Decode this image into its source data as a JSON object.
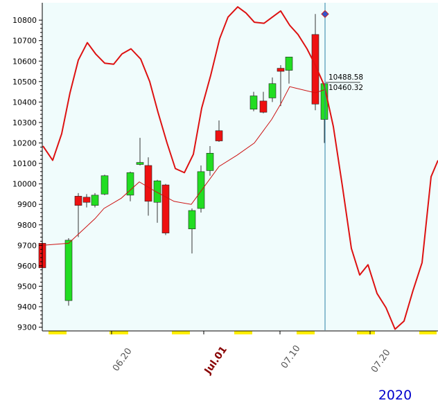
{
  "chart_data": {
    "type": "candlestick",
    "year_label": "2020",
    "x_tick_labels": [
      "06.20",
      "Jul.01",
      "07.10",
      "07.20"
    ],
    "y_ticks": [
      9300,
      9400,
      9500,
      9600,
      9700,
      9800,
      9900,
      10000,
      10100,
      10200,
      10300,
      10400,
      10500,
      10600,
      10700,
      10800
    ],
    "ylim": [
      9285,
      10885
    ],
    "value_labels": [
      "10488.58",
      "10460.32"
    ],
    "grid": false,
    "colors": {
      "plot_background": "#f0fcfc",
      "up_candle": "#22dd22",
      "down_candle": "#ee1111",
      "red_line": "#dd1111",
      "moving_average": "#cc1111",
      "cursor": "#2a7fa6",
      "holiday_marks": "#ffee00",
      "year_label": "#0000cc",
      "highlight_tick": "#880000"
    },
    "candles": [
      {
        "o": 9710,
        "h": 9760,
        "l": 9400,
        "c": 9590
      },
      {
        "o": 9430,
        "h": 9735,
        "l": 9405,
        "c": 9725
      },
      {
        "o": 9940,
        "h": 9955,
        "l": 9740,
        "c": 9895
      },
      {
        "o": 9935,
        "h": 9950,
        "l": 9885,
        "c": 9910
      },
      {
        "o": 9895,
        "h": 9955,
        "l": 9885,
        "c": 9945
      },
      {
        "o": 9950,
        "h": 10045,
        "l": 9945,
        "c": 10040
      },
      {
        "o": 9945,
        "h": 10060,
        "l": 9915,
        "c": 10055
      },
      {
        "o": 10095,
        "h": 10225,
        "l": 10090,
        "c": 10105
      },
      {
        "o": 10090,
        "h": 10130,
        "l": 9845,
        "c": 9915
      },
      {
        "o": 9910,
        "h": 10020,
        "l": 9810,
        "c": 10015
      },
      {
        "o": 9995,
        "h": 10000,
        "l": 9750,
        "c": 9760
      },
      {
        "o": 9780,
        "h": 9880,
        "l": 9660,
        "c": 9870
      },
      {
        "o": 9880,
        "h": 10090,
        "l": 9860,
        "c": 10060
      },
      {
        "o": 10065,
        "h": 10185,
        "l": 10040,
        "c": 10150
      },
      {
        "o": 10260,
        "h": 10310,
        "l": 10205,
        "c": 10210
      },
      {
        "o": 10365,
        "h": 10450,
        "l": 10355,
        "c": 10430
      },
      {
        "o": 10405,
        "h": 10450,
        "l": 10345,
        "c": 10350
      },
      {
        "o": 10420,
        "h": 10520,
        "l": 10400,
        "c": 10490
      },
      {
        "o": 10565,
        "h": 10580,
        "l": 10380,
        "c": 10550
      },
      {
        "o": 10555,
        "h": 10620,
        "l": 10490,
        "c": 10620
      },
      {
        "o": 10730,
        "h": 10830,
        "l": 10360,
        "c": 10390
      },
      {
        "o": 10315,
        "h": 10490,
        "l": 10200,
        "c": 10490
      }
    ],
    "candle_x": [
      61,
      99,
      113,
      125,
      137,
      151,
      188,
      202,
      214,
      227,
      239,
      277,
      290,
      303,
      316,
      366,
      380,
      393,
      405,
      417,
      455,
      468
    ],
    "moving_average": {
      "x": [
        62,
        99,
        137,
        150,
        175,
        201,
        226,
        251,
        276,
        316,
        342,
        367,
        392,
        405,
        418,
        455,
        468
      ],
      "y": [
        9700,
        9710,
        9830,
        9880,
        9930,
        10010,
        9960,
        9915,
        9900,
        10085,
        10140,
        10200,
        10315,
        10390,
        10475,
        10445,
        10460
      ]
    },
    "red_line": {
      "x": [
        62,
        76,
        89,
        101,
        113,
        126,
        138,
        151,
        164,
        176,
        189,
        203,
        216,
        228,
        241,
        253,
        266,
        279,
        291,
        304,
        317,
        329,
        343,
        355,
        367,
        381,
        393,
        405,
        418,
        430,
        443,
        455,
        468,
        481,
        494,
        507,
        519,
        531,
        544,
        557,
        570,
        583,
        596,
        609,
        622,
        632
      ],
      "y": [
        10185,
        10115,
        10245,
        10445,
        10605,
        10690,
        10635,
        10590,
        10585,
        10635,
        10660,
        10610,
        10500,
        10350,
        10200,
        10075,
        10055,
        10145,
        10370,
        10530,
        10710,
        10815,
        10865,
        10835,
        10790,
        10785,
        10815,
        10845,
        10775,
        10730,
        10660,
        10580,
        10480,
        10280,
        9990,
        9685,
        9555,
        9605,
        9465,
        9395,
        9290,
        9330,
        9480,
        9615,
        10035,
        10115
      ]
    },
    "cursor": {
      "x": 469,
      "value": 10830
    },
    "holiday_marks": [
      [
        70,
        96
      ],
      [
        158,
        185
      ],
      [
        248,
        274
      ],
      [
        338,
        364
      ],
      [
        428,
        454
      ],
      [
        515,
        541
      ],
      [
        605,
        630
      ]
    ]
  }
}
